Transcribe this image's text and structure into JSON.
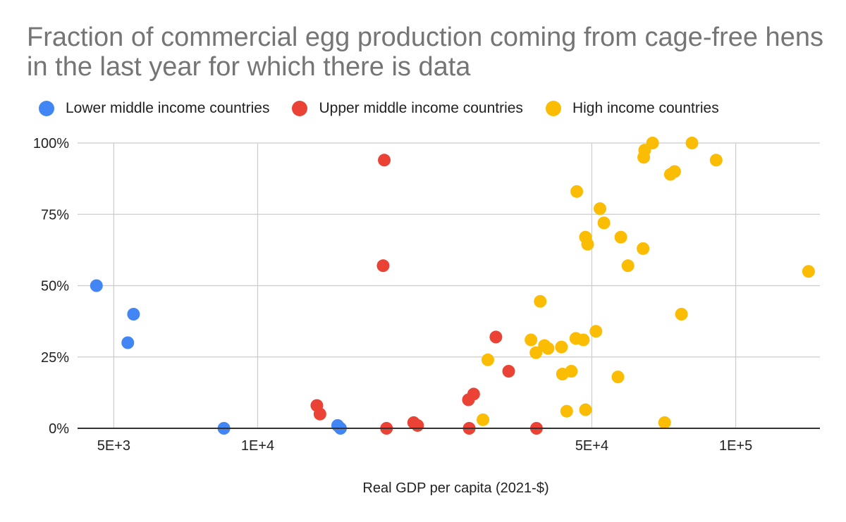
{
  "chart_data": {
    "type": "scatter",
    "title": "Fraction of commercial egg production coming from cage-free hens in the last year for which there is data",
    "xlabel": "Real GDP per capita (2021-$)",
    "ylabel": "",
    "x_scale": "log",
    "xlim": [
      4200,
      150000
    ],
    "ylim": [
      0,
      1
    ],
    "x_ticks": [
      {
        "value": 5000,
        "label": "5E+3"
      },
      {
        "value": 10000,
        "label": "1E+4"
      },
      {
        "value": 50000,
        "label": "5E+4"
      },
      {
        "value": 100000,
        "label": "1E+5"
      }
    ],
    "y_ticks": [
      {
        "value": 0,
        "label": "0%"
      },
      {
        "value": 0.25,
        "label": "25%"
      },
      {
        "value": 0.5,
        "label": "50%"
      },
      {
        "value": 0.75,
        "label": "75%"
      },
      {
        "value": 1,
        "label": "100%"
      }
    ],
    "grid": true,
    "legend_position": "top",
    "series": [
      {
        "name": "Lower middle income countries",
        "color": "#4285f4",
        "points": [
          {
            "x": 4600,
            "y": 0.5
          },
          {
            "x": 5350,
            "y": 0.3
          },
          {
            "x": 5500,
            "y": 0.4
          },
          {
            "x": 8500,
            "y": 0.0
          },
          {
            "x": 14700,
            "y": 0.01
          },
          {
            "x": 14900,
            "y": 0.0
          }
        ]
      },
      {
        "name": "Upper middle income countries",
        "color": "#ea4335",
        "points": [
          {
            "x": 18400,
            "y": 0.94
          },
          {
            "x": 18300,
            "y": 0.57
          },
          {
            "x": 13300,
            "y": 0.08
          },
          {
            "x": 13500,
            "y": 0.05
          },
          {
            "x": 18600,
            "y": 0.0
          },
          {
            "x": 21200,
            "y": 0.02
          },
          {
            "x": 21600,
            "y": 0.01
          },
          {
            "x": 27600,
            "y": 0.1
          },
          {
            "x": 28300,
            "y": 0.12
          },
          {
            "x": 31500,
            "y": 0.32
          },
          {
            "x": 33500,
            "y": 0.2
          },
          {
            "x": 27700,
            "y": 0.0
          },
          {
            "x": 38300,
            "y": 0.0
          }
        ]
      },
      {
        "name": "High income countries",
        "color": "#fbbc04",
        "points": [
          {
            "x": 64500,
            "y": 0.975
          },
          {
            "x": 67000,
            "y": 1.0
          },
          {
            "x": 81000,
            "y": 1.0
          },
          {
            "x": 64200,
            "y": 0.95
          },
          {
            "x": 73000,
            "y": 0.89
          },
          {
            "x": 74500,
            "y": 0.9
          },
          {
            "x": 91000,
            "y": 0.94
          },
          {
            "x": 46500,
            "y": 0.83
          },
          {
            "x": 52000,
            "y": 0.77
          },
          {
            "x": 53000,
            "y": 0.72
          },
          {
            "x": 48500,
            "y": 0.67
          },
          {
            "x": 49000,
            "y": 0.645
          },
          {
            "x": 57500,
            "y": 0.67
          },
          {
            "x": 64000,
            "y": 0.63
          },
          {
            "x": 59500,
            "y": 0.57
          },
          {
            "x": 142000,
            "y": 0.55
          },
          {
            "x": 39000,
            "y": 0.445
          },
          {
            "x": 77000,
            "y": 0.4
          },
          {
            "x": 51000,
            "y": 0.34
          },
          {
            "x": 46300,
            "y": 0.315
          },
          {
            "x": 48000,
            "y": 0.31
          },
          {
            "x": 37300,
            "y": 0.31
          },
          {
            "x": 39800,
            "y": 0.29
          },
          {
            "x": 40500,
            "y": 0.28
          },
          {
            "x": 43200,
            "y": 0.285
          },
          {
            "x": 38200,
            "y": 0.265
          },
          {
            "x": 30300,
            "y": 0.24
          },
          {
            "x": 43400,
            "y": 0.19
          },
          {
            "x": 45300,
            "y": 0.2
          },
          {
            "x": 56700,
            "y": 0.18
          },
          {
            "x": 29600,
            "y": 0.03
          },
          {
            "x": 44300,
            "y": 0.06
          },
          {
            "x": 48500,
            "y": 0.065
          },
          {
            "x": 71000,
            "y": 0.02
          }
        ]
      }
    ]
  }
}
